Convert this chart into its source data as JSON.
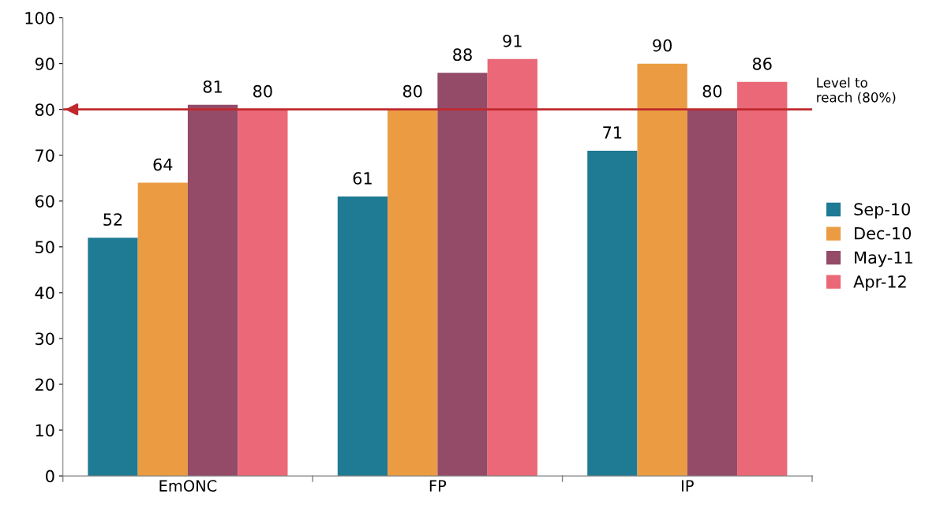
{
  "chart_data": {
    "type": "bar",
    "categories": [
      "EmONC",
      "FP",
      "IP"
    ],
    "series": [
      {
        "name": "Sep-10",
        "color": "#1f7a94",
        "values": [
          52,
          61,
          71
        ]
      },
      {
        "name": "Dec-10",
        "color": "#eb9c42",
        "values": [
          64,
          80,
          90
        ]
      },
      {
        "name": "May-11",
        "color": "#934b68",
        "values": [
          81,
          88,
          80
        ]
      },
      {
        "name": "Apr-12",
        "color": "#ea6877",
        "values": [
          80,
          91,
          86
        ]
      }
    ],
    "ylim": [
      0,
      100
    ],
    "yticks": [
      0,
      10,
      20,
      30,
      40,
      50,
      60,
      70,
      80,
      90,
      100
    ],
    "grid": false,
    "legend": "right",
    "data_labels": true,
    "ref_lines": [
      {
        "axis": "y",
        "value": 80,
        "label": "Level to\nreach (80%)",
        "color": "#c0282d"
      }
    ]
  }
}
